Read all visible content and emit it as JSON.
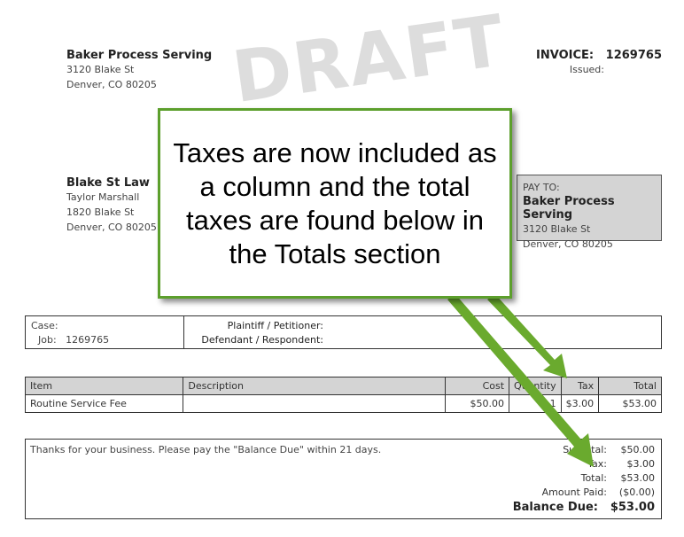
{
  "watermark": "DRAFT",
  "from": {
    "name": "Baker Process Serving",
    "address1": "3120 Blake St",
    "address2": "Denver, CO 80205"
  },
  "invoice": {
    "label": "INVOICE:",
    "number": "1269765",
    "issued_label": "Issued:",
    "issued_value": ""
  },
  "bill_to": {
    "name": "Blake St Law",
    "contact": "Taylor Marshall",
    "address1": "1820 Blake St",
    "address2": "Denver, CO 80205"
  },
  "pay_to": {
    "label": "PAY TO:",
    "name": "Baker Process Serving",
    "address1": "3120 Blake St",
    "address2": "Denver, CO 80205"
  },
  "case": {
    "case_label": "Case:",
    "case_value": "",
    "job_label": "Job:",
    "job_value": "1269765",
    "plaintiff_label": "Plaintiff / Petitioner:",
    "defendant_label": "Defendant / Respondent:"
  },
  "items": {
    "headers": [
      "Item",
      "Description",
      "Cost",
      "Quantity",
      "Tax",
      "Total"
    ],
    "rows": [
      [
        "Routine Service Fee",
        "",
        "$50.00",
        "1",
        "$3.00",
        "$53.00"
      ]
    ]
  },
  "totals": {
    "note": "Thanks for your business. Please pay the \"Balance Due\" within 21 days.",
    "rows": [
      {
        "label": "Subtotal:",
        "value": "$50.00"
      },
      {
        "label": "Tax:",
        "value": "$3.00"
      },
      {
        "label": "Total:",
        "value": "$53.00"
      },
      {
        "label": "Amount Paid:",
        "value": "($0.00)"
      }
    ],
    "balance_label": "Balance Due:",
    "balance_value": "$53.00"
  },
  "callout": {
    "text": "Taxes are now included as a column and the total taxes are found below in the Totals section"
  },
  "colors": {
    "callout_border": "#5c9f2c",
    "arrow": "#6aaa2e",
    "header_bg": "#d4d4d4"
  }
}
